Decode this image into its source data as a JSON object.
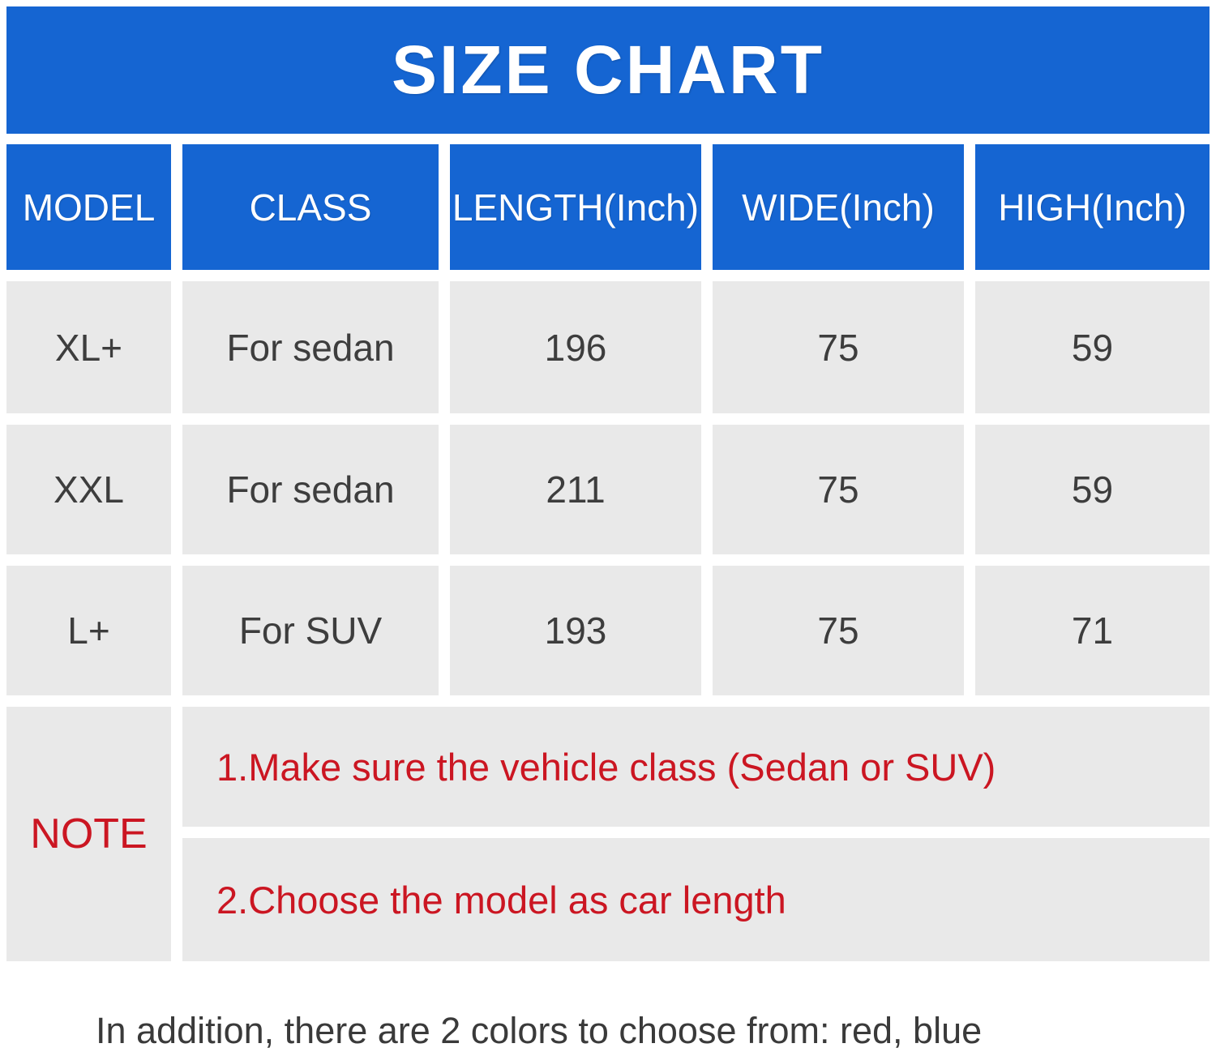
{
  "title": "SIZE CHART",
  "table": {
    "headers": [
      "MODEL",
      "CLASS",
      "LENGTH(Inch)",
      "WIDE(Inch)",
      "HIGH(Inch)"
    ],
    "rows": [
      {
        "model": "XL+",
        "class": "For sedan",
        "length": "196",
        "wide": "75",
        "high": "59"
      },
      {
        "model": "XXL",
        "class": "For sedan",
        "length": "211",
        "wide": "75",
        "high": "59"
      },
      {
        "model": "L+",
        "class": "For SUV",
        "length": "193",
        "wide": "75",
        "high": "71"
      }
    ],
    "note_label": "NOTE",
    "notes": [
      "1.Make sure the vehicle class (Sedan or SUV)",
      "2.Choose the model as car length"
    ]
  },
  "footer_caption": "In addition, there are 2 colors to choose from: red, blue",
  "colors": {
    "header_blue": "#1565d2",
    "cell_gray": "#e9e9e9",
    "note_red": "#cb1622",
    "text_dark": "#3d3d3d",
    "banner_text": "#ffffff"
  },
  "chart_data": {
    "type": "table",
    "title": "SIZE CHART",
    "columns": [
      "MODEL",
      "CLASS",
      "LENGTH(Inch)",
      "WIDE(Inch)",
      "HIGH(Inch)"
    ],
    "rows": [
      [
        "XL+",
        "For sedan",
        196,
        75,
        59
      ],
      [
        "XXL",
        "For sedan",
        211,
        75,
        59
      ],
      [
        "L+",
        "For SUV",
        193,
        75,
        71
      ]
    ],
    "notes": [
      "1.Make sure the vehicle class (Sedan or SUV)",
      "2.Choose the model as car length"
    ],
    "caption": "In addition, there are 2 colors to choose from: red, blue"
  }
}
